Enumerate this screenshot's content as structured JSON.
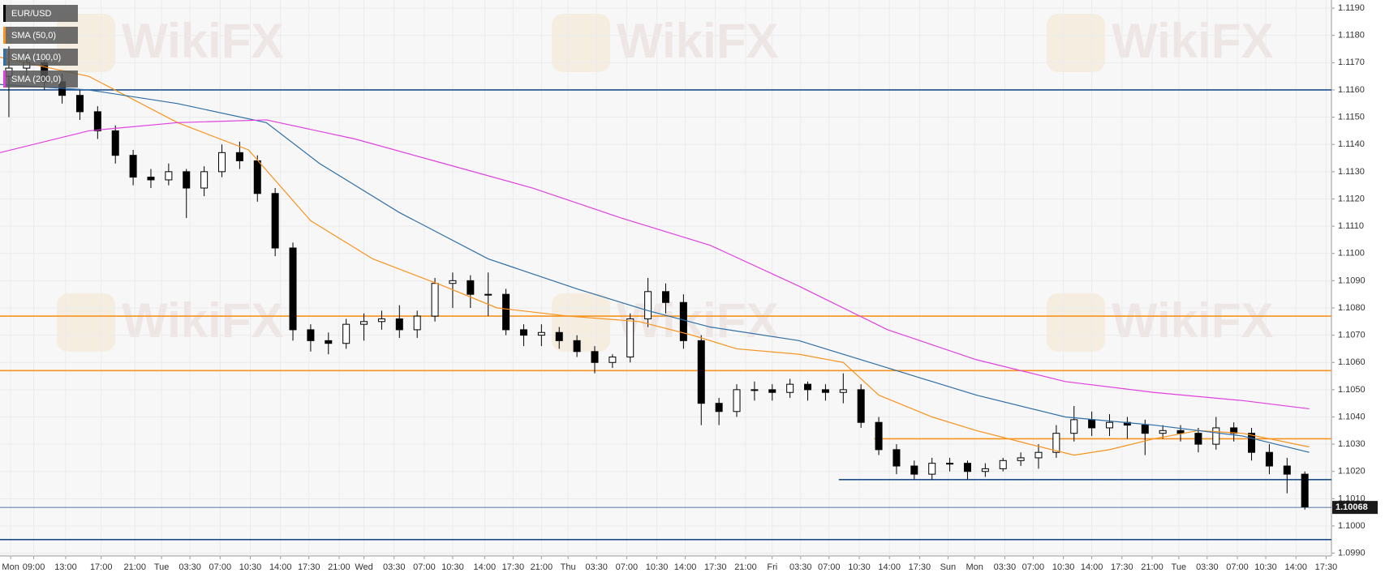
{
  "chart_data": {
    "type": "candlestick",
    "watermark": "WikiFX",
    "series": [
      {
        "name": "EUR/USD",
        "color": "#000000",
        "open": [
          1.1165,
          1.1168,
          1.117,
          1.1163,
          1.1158,
          1.1152,
          1.1145,
          1.1136,
          1.1128,
          1.1127,
          1.113,
          1.1124,
          1.113,
          1.1137,
          1.1134,
          1.1122,
          1.1102,
          1.1072,
          1.1068,
          1.1067,
          1.1074,
          1.1075,
          1.1076,
          1.1072,
          1.1077,
          1.1089,
          1.109,
          1.1085,
          1.1085,
          1.1072,
          1.107,
          1.1071,
          1.1068,
          1.1064,
          1.106,
          1.1062,
          1.1076,
          1.1086,
          1.1082,
          1.1068,
          1.1045,
          1.1042,
          1.105,
          1.105,
          1.1049,
          1.1052,
          1.105,
          1.1049,
          1.105,
          1.1038,
          1.1028,
          1.1022,
          1.1019,
          1.1023,
          1.1023,
          1.102,
          1.1021,
          1.1024,
          1.1025,
          1.1027,
          1.1034,
          1.1039,
          1.1036,
          1.1038,
          1.1037,
          1.1034,
          1.1035,
          1.1034,
          1.103,
          1.1036,
          1.1034,
          1.1027,
          1.1022,
          1.1019
        ],
        "high": [
          1.1176,
          1.1174,
          1.1172,
          1.1166,
          1.116,
          1.1154,
          1.1147,
          1.1138,
          1.1131,
          1.1133,
          1.1131,
          1.1132,
          1.114,
          1.1141,
          1.1136,
          1.1124,
          1.1104,
          1.1074,
          1.1071,
          1.1076,
          1.1078,
          1.1079,
          1.1081,
          1.1079,
          1.1091,
          1.1093,
          1.1092,
          1.1093,
          1.1087,
          1.1074,
          1.1074,
          1.1073,
          1.107,
          1.1066,
          1.1063,
          1.1078,
          1.1091,
          1.1089,
          1.1085,
          1.107,
          1.1047,
          1.1052,
          1.1053,
          1.1052,
          1.1054,
          1.1053,
          1.1052,
          1.1056,
          1.1052,
          1.104,
          1.103,
          1.1024,
          1.1025,
          1.1025,
          1.1024,
          1.1023,
          1.1025,
          1.1027,
          1.103,
          1.1037,
          1.1044,
          1.1042,
          1.1041,
          1.104,
          1.1039,
          1.1037,
          1.1037,
          1.1036,
          1.104,
          1.1038,
          1.1036,
          1.103,
          1.1025,
          1.102
        ],
        "low": [
          1.115,
          1.1165,
          1.116,
          1.1155,
          1.1149,
          1.1142,
          1.1133,
          1.1125,
          1.1124,
          1.1125,
          1.1113,
          1.1121,
          1.1128,
          1.1131,
          1.1119,
          1.1099,
          1.1068,
          1.1064,
          1.1063,
          1.1065,
          1.1068,
          1.1072,
          1.1069,
          1.1069,
          1.1075,
          1.108,
          1.108,
          1.1077,
          1.107,
          1.1066,
          1.1066,
          1.1065,
          1.1062,
          1.1056,
          1.1058,
          1.106,
          1.1073,
          1.1078,
          1.1065,
          1.1037,
          1.1037,
          1.104,
          1.1046,
          1.1046,
          1.1047,
          1.1046,
          1.1046,
          1.1045,
          1.1036,
          1.1026,
          1.1019,
          1.1017,
          1.1017,
          1.102,
          1.1017,
          1.1018,
          1.102,
          1.1022,
          1.1021,
          1.1025,
          1.1031,
          1.1033,
          1.1033,
          1.1032,
          1.1026,
          1.1032,
          1.1031,
          1.1027,
          1.1028,
          1.1031,
          1.1024,
          1.1019,
          1.1012,
          1.1006
        ],
        "close": [
          1.1168,
          1.117,
          1.1163,
          1.1158,
          1.1152,
          1.1145,
          1.1136,
          1.1128,
          1.1127,
          1.113,
          1.1124,
          1.113,
          1.1137,
          1.1134,
          1.1122,
          1.1102,
          1.1072,
          1.1068,
          1.1067,
          1.1074,
          1.1075,
          1.1076,
          1.1072,
          1.1077,
          1.1089,
          1.109,
          1.1085,
          1.1085,
          1.1072,
          1.107,
          1.1071,
          1.1068,
          1.1064,
          1.106,
          1.1062,
          1.1076,
          1.1086,
          1.1082,
          1.1068,
          1.1045,
          1.1042,
          1.105,
          1.105,
          1.1049,
          1.1052,
          1.105,
          1.1049,
          1.105,
          1.1038,
          1.1028,
          1.1022,
          1.1019,
          1.1023,
          1.1023,
          1.102,
          1.1021,
          1.1024,
          1.1025,
          1.1027,
          1.1034,
          1.1039,
          1.1036,
          1.1038,
          1.1037,
          1.1034,
          1.1035,
          1.1034,
          1.103,
          1.1036,
          1.1034,
          1.1027,
          1.1022,
          1.1019,
          1.1007
        ]
      },
      {
        "name": "SMA (50,0)",
        "color": "#f7931e",
        "x": [
          -0.5,
          4.5,
          9.5,
          13.5,
          17,
          20.5,
          24.5,
          27.5,
          31.5,
          35.5,
          38.5,
          41,
          44.5,
          47,
          49,
          52,
          54.5,
          57.5,
          60,
          62,
          64.5,
          67,
          69.5,
          73.25
        ],
        "values": [
          1.1172,
          1.1165,
          1.1148,
          1.1138,
          1.1112,
          1.1098,
          1.1088,
          1.108,
          1.1077,
          1.1075,
          1.107,
          1.1065,
          1.1063,
          1.106,
          1.1048,
          1.104,
          1.1035,
          1.103,
          1.1026,
          1.1028,
          1.1032,
          1.1035,
          1.1034,
          1.1029
        ]
      },
      {
        "name": "SMA (100,0)",
        "color": "#2f6ea5",
        "x": [
          -0.5,
          4.5,
          9.5,
          14.5,
          17.5,
          22,
          27,
          32,
          36,
          39.5,
          44.5,
          49.5,
          54.5,
          59.5,
          64.5,
          69.5,
          73.25
        ],
        "values": [
          1.1162,
          1.116,
          1.1155,
          1.1148,
          1.1133,
          1.1115,
          1.1098,
          1.1087,
          1.1079,
          1.1073,
          1.1068,
          1.1058,
          1.1048,
          1.104,
          1.1037,
          1.1033,
          1.1027
        ]
      },
      {
        "name": "SMA (200,0)",
        "color": "#e040e0",
        "x": [
          -0.5,
          4.5,
          9.5,
          14.5,
          19.5,
          24.5,
          29.5,
          34.5,
          39.5,
          44.5,
          49.5,
          54.5,
          59.5,
          64.5,
          69.5,
          73.25
        ],
        "values": [
          1.1137,
          1.1145,
          1.1148,
          1.1149,
          1.1142,
          1.1133,
          1.1124,
          1.1113,
          1.1103,
          1.1088,
          1.1072,
          1.1061,
          1.1053,
          1.1049,
          1.1046,
          1.1043
        ]
      }
    ],
    "levels": [
      {
        "value": 1.116,
        "color": "#1f4e8c",
        "from": -0.5
      },
      {
        "value": 1.1077,
        "color": "#f7931e",
        "from": -0.5
      },
      {
        "value": 1.1057,
        "color": "#f7931e",
        "from": -0.5
      },
      {
        "value": 1.1032,
        "color": "#f7931e",
        "from": 48.75
      },
      {
        "value": 1.1017,
        "color": "#1f4e8c",
        "from": 46.75
      },
      {
        "value": 1.0995,
        "color": "#1f4e8c",
        "from": -0.5
      }
    ],
    "last_price": 1.10068,
    "xlim": [
      -0.5,
      74.5
    ],
    "ylim": [
      1.0989,
      1.1193
    ],
    "yticks": [
      {
        "value": 1.119,
        "label": "1.1190"
      },
      {
        "value": 1.118,
        "label": "1.1180"
      },
      {
        "value": 1.117,
        "label": "1.1170"
      },
      {
        "value": 1.116,
        "label": "1.1160"
      },
      {
        "value": 1.115,
        "label": "1.1150"
      },
      {
        "value": 1.114,
        "label": "1.1140"
      },
      {
        "value": 1.113,
        "label": "1.1130"
      },
      {
        "value": 1.112,
        "label": "1.1120"
      },
      {
        "value": 1.111,
        "label": "1.1110"
      },
      {
        "value": 1.11,
        "label": "1.1100"
      },
      {
        "value": 1.109,
        "label": "1.1090"
      },
      {
        "value": 1.108,
        "label": "1.1080"
      },
      {
        "value": 1.107,
        "label": "1.1070"
      },
      {
        "value": 1.106,
        "label": "1.1060"
      },
      {
        "value": 1.105,
        "label": "1.1050"
      },
      {
        "value": 1.104,
        "label": "1.1040"
      },
      {
        "value": 1.103,
        "label": "1.1030"
      },
      {
        "value": 1.102,
        "label": "1.1020"
      },
      {
        "value": 1.101,
        "label": "1.1010"
      },
      {
        "value": 1.1,
        "label": "1.1000"
      },
      {
        "value": 1.099,
        "label": "1.0990"
      }
    ],
    "xticks": [
      {
        "value": 0.1,
        "label": "Mon"
      },
      {
        "value": 1.4,
        "label": "09:00"
      },
      {
        "value": 3.2,
        "label": "13:00"
      },
      {
        "value": 5.2,
        "label": "17:00"
      },
      {
        "value": 7.1,
        "label": "21:00"
      },
      {
        "value": 8.6,
        "label": "Tue"
      },
      {
        "value": 10.2,
        "label": "03:30"
      },
      {
        "value": 11.9,
        "label": "07:00"
      },
      {
        "value": 13.6,
        "label": "10:30"
      },
      {
        "value": 15.3,
        "label": "14:00"
      },
      {
        "value": 16.9,
        "label": "17:30"
      },
      {
        "value": 18.6,
        "label": "21:00"
      },
      {
        "value": 20.0,
        "label": "Wed"
      },
      {
        "value": 21.7,
        "label": "03:30"
      },
      {
        "value": 23.4,
        "label": "07:00"
      },
      {
        "value": 25.0,
        "label": "10:30"
      },
      {
        "value": 26.8,
        "label": "14:00"
      },
      {
        "value": 28.4,
        "label": "17:30"
      },
      {
        "value": 30.0,
        "label": "21:00"
      },
      {
        "value": 31.5,
        "label": "Thu"
      },
      {
        "value": 33.1,
        "label": "03:30"
      },
      {
        "value": 34.8,
        "label": "07:00"
      },
      {
        "value": 36.5,
        "label": "10:30"
      },
      {
        "value": 38.1,
        "label": "14:00"
      },
      {
        "value": 39.8,
        "label": "17:30"
      },
      {
        "value": 41.5,
        "label": "21:00"
      },
      {
        "value": 43.0,
        "label": "Fri"
      },
      {
        "value": 44.6,
        "label": "03:30"
      },
      {
        "value": 46.2,
        "label": "07:00"
      },
      {
        "value": 47.9,
        "label": "10:30"
      },
      {
        "value": 49.6,
        "label": "14:00"
      },
      {
        "value": 51.3,
        "label": "17:30"
      },
      {
        "value": 52.9,
        "label": "Sun"
      },
      {
        "value": 54.4,
        "label": "Mon"
      },
      {
        "value": 56.1,
        "label": "03:30"
      },
      {
        "value": 57.7,
        "label": "07:00"
      },
      {
        "value": 59.4,
        "label": "10:30"
      },
      {
        "value": 61.0,
        "label": "14:00"
      },
      {
        "value": 62.7,
        "label": "17:30"
      },
      {
        "value": 64.4,
        "label": "21:00"
      },
      {
        "value": 65.9,
        "label": "Tue"
      },
      {
        "value": 67.5,
        "label": "03:30"
      },
      {
        "value": 69.2,
        "label": "07:00"
      },
      {
        "value": 70.8,
        "label": "10:30"
      },
      {
        "value": 72.5,
        "label": "14:00"
      },
      {
        "value": 74.2,
        "label": "17:30"
      }
    ],
    "grid": true
  }
}
